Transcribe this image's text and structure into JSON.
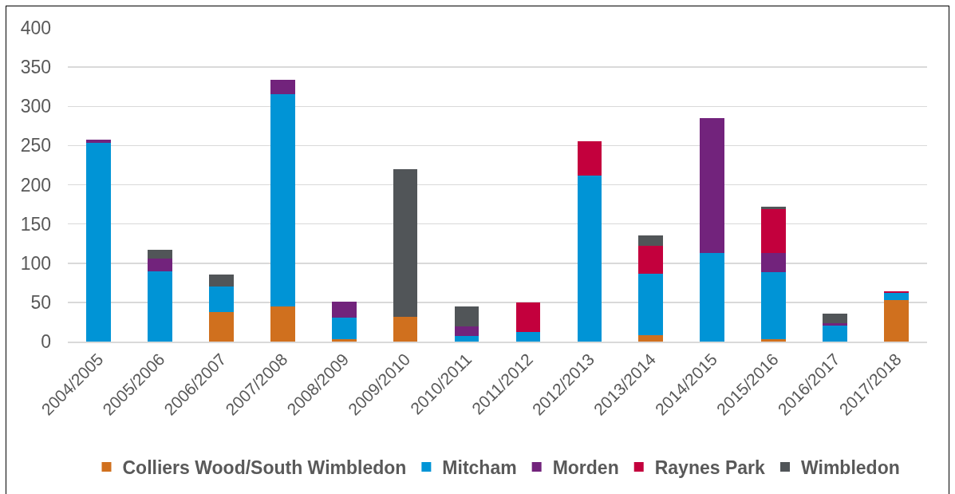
{
  "chart_data": {
    "type": "bar",
    "stacked": true,
    "categories": [
      "2004/2005",
      "2005/2006",
      "2006/2007",
      "2007/2008",
      "2008/2009",
      "2009/2010",
      "2010/2011",
      "2011/2012",
      "2012/2013",
      "2013/2014",
      "2014/2015",
      "2015/2016",
      "2016/2017",
      "2017/2018"
    ],
    "series": [
      {
        "name": "Colliers Wood/South Wimbledon",
        "color": "#d0701e",
        "values": [
          0,
          0,
          38,
          45,
          3,
          32,
          0,
          0,
          0,
          8,
          0,
          3,
          0,
          53
        ]
      },
      {
        "name": "Mitcham",
        "color": "#0094d6",
        "values": [
          253,
          90,
          32,
          271,
          28,
          0,
          7,
          12,
          212,
          79,
          113,
          86,
          20,
          9
        ]
      },
      {
        "name": "Morden",
        "color": "#72237c",
        "values": [
          5,
          16,
          0,
          18,
          20,
          0,
          12,
          0,
          0,
          0,
          172,
          24,
          3,
          0
        ]
      },
      {
        "name": "Raynes Park",
        "color": "#c3003d",
        "values": [
          0,
          0,
          0,
          0,
          0,
          0,
          0,
          38,
          43,
          35,
          0,
          56,
          0,
          2
        ]
      },
      {
        "name": "Wimbledon",
        "color": "#515558",
        "values": [
          0,
          11,
          15,
          0,
          0,
          188,
          26,
          0,
          0,
          13,
          0,
          3,
          13,
          0
        ]
      }
    ],
    "ylim": [
      0,
      400
    ],
    "yticks": [
      0,
      50,
      100,
      150,
      200,
      250,
      300,
      350,
      400
    ],
    "grid": "y",
    "legend": "bottom"
  }
}
